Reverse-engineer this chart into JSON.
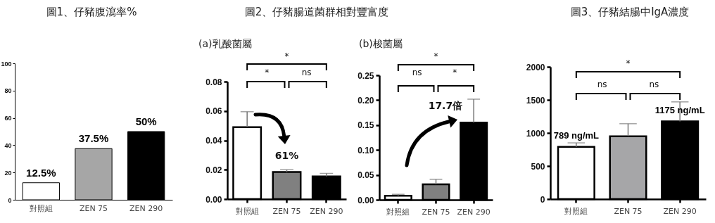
{
  "chart_data": [
    {
      "type": "bar",
      "title": "圖1、仔豬腹瀉率%",
      "categories": [
        "對照組",
        "ZEN 75",
        "ZEN 290"
      ],
      "values": [
        12.5,
        37.5,
        50
      ],
      "colors": [
        "#ffffff",
        "#a6a6a6",
        "#000000"
      ],
      "ylim": [
        0,
        100
      ],
      "yticks": [
        0,
        20,
        40,
        60,
        80,
        100
      ],
      "value_labels": [
        "12.5%",
        "37.5%",
        "50%"
      ]
    },
    {
      "type": "bar",
      "title": "圖2、仔豬腸道菌群相對豐富度",
      "subtitle": "(a)乳酸菌屬",
      "categories": [
        "對照組",
        "ZEN 75",
        "ZEN 290"
      ],
      "values": [
        0.049,
        0.0185,
        0.0155
      ],
      "errors": [
        [
          0.049,
          0.0595
        ],
        [
          0.0185,
          0.02
        ],
        [
          0.0155,
          0.0175
        ]
      ],
      "colors": [
        "#ffffff",
        "#808080",
        "#000000"
      ],
      "ylim": [
        0,
        0.08
      ],
      "yticks": [
        {
          "value": 0,
          "label": "0.00"
        },
        0.02,
        0.04,
        0.06,
        0.08
      ],
      "annotations": [
        "*",
        "*",
        "ns",
        "61%"
      ]
    },
    {
      "type": "bar",
      "subtitle": "(b)梭菌屬",
      "categories": [
        "對照組",
        "ZEN 75",
        "ZEN 290"
      ],
      "values": [
        0.008,
        0.031,
        0.155
      ],
      "errors": [
        [
          0.008,
          0.011
        ],
        [
          0.031,
          0.041
        ],
        [
          0.155,
          0.202
        ]
      ],
      "colors": [
        "#ffffff",
        "#808080",
        "#000000"
      ],
      "ylim": [
        0,
        0.25
      ],
      "yticks": [
        {
          "value": 0,
          "label": "0.00"
        },
        0.05,
        {
          "value": 0.1,
          "label": "0.10"
        },
        0.15,
        {
          "value": 0.2,
          "label": "0.20"
        },
        0.25
      ],
      "annotations": [
        "*",
        "ns",
        "*",
        "17.7倍"
      ]
    },
    {
      "type": "bar",
      "title": "圖3、仔豬結腸中IgA濃度",
      "categories": [
        "對照組",
        "ZEN 75",
        "ZEN 290"
      ],
      "values": [
        789,
        950,
        1175
      ],
      "errors": [
        [
          789,
          850
        ],
        [
          950,
          1140
        ],
        [
          1175,
          1470
        ]
      ],
      "colors": [
        "#ffffff",
        "#a6a6a8",
        "#000000"
      ],
      "ylim": [
        0,
        2000
      ],
      "yticks": [
        0,
        500,
        1000,
        1500,
        2000
      ],
      "value_labels": [
        "789 ng/mL",
        null,
        "1175 ng/mL"
      ],
      "annotations": [
        "*",
        "ns",
        "ns"
      ]
    }
  ]
}
